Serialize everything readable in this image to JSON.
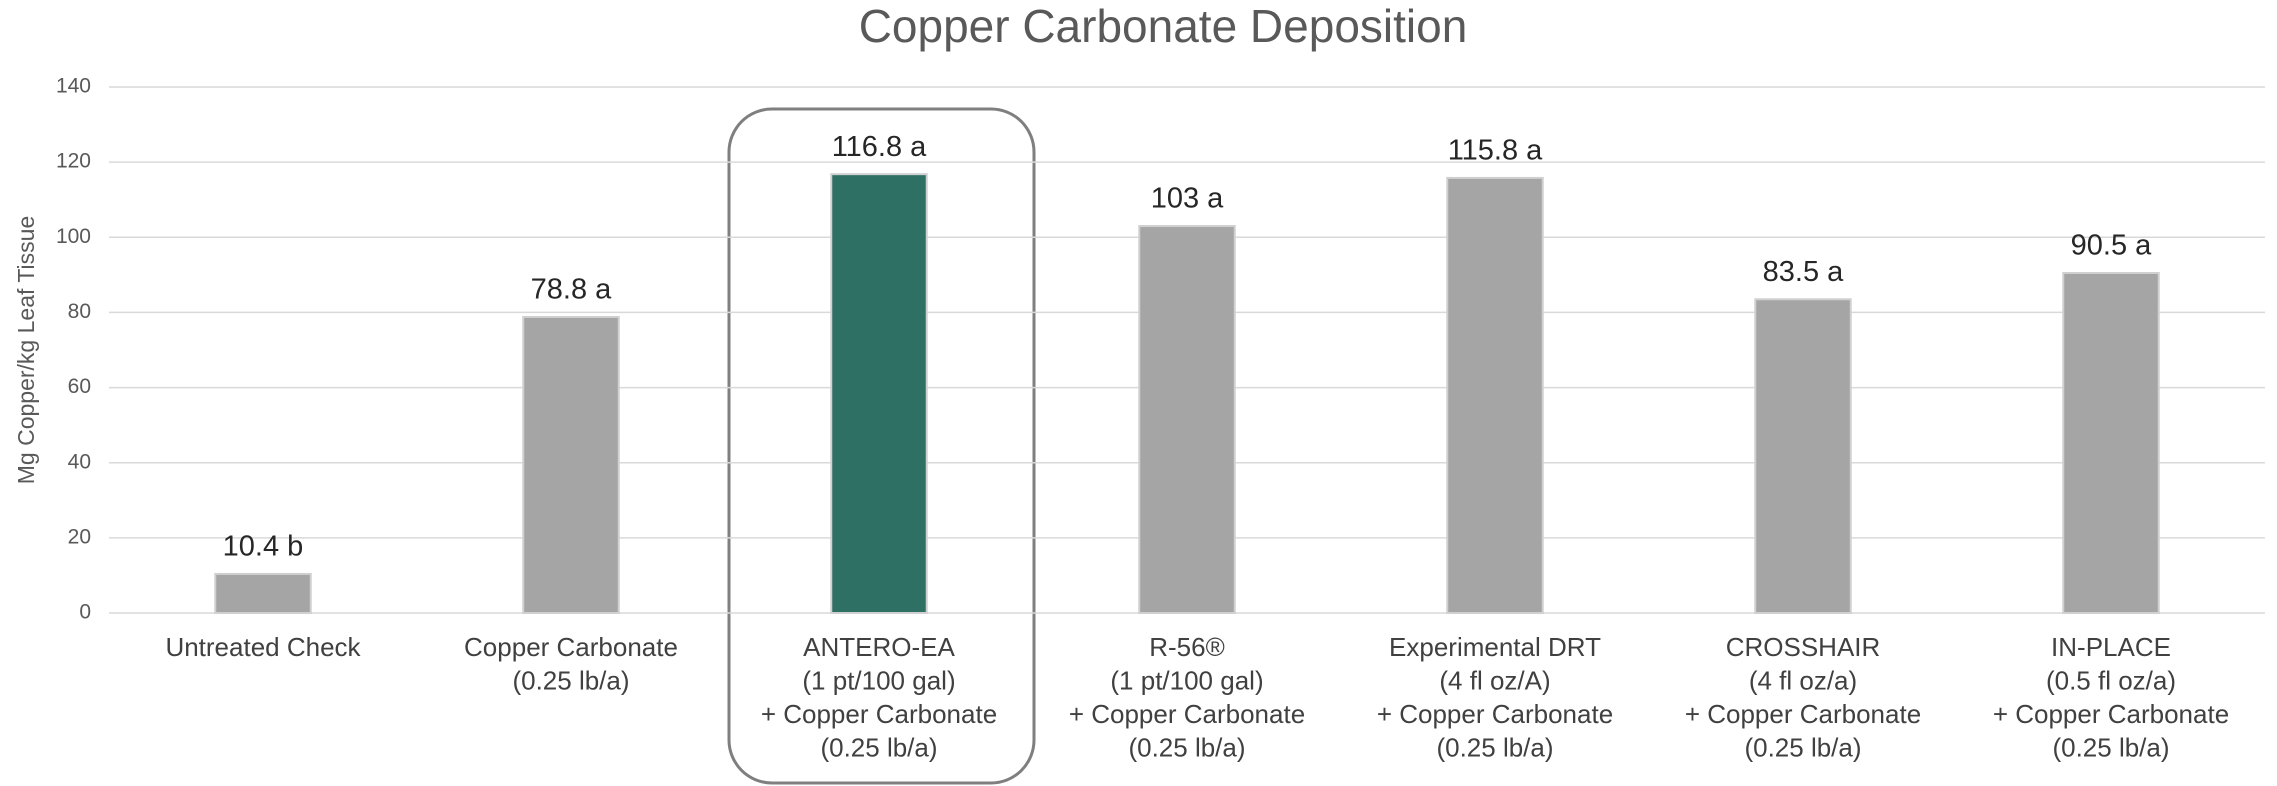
{
  "chart_data": {
    "type": "bar",
    "title": "Copper Carbonate Deposition",
    "y_label": "Mg Copper/kg Leaf Tissue",
    "categories": [
      [
        "Untreated Check"
      ],
      [
        "Copper Carbonate",
        "(0.25 lb/a)"
      ],
      [
        "ANTERO-EA",
        "(1 pt/100 gal)",
        "+ Copper Carbonate",
        "(0.25 lb/a)"
      ],
      [
        "R-56®",
        "(1 pt/100 gal)",
        "+ Copper Carbonate",
        "(0.25 lb/a)"
      ],
      [
        "Experimental DRT",
        "(4 fl oz/A)",
        "+ Copper Carbonate",
        "(0.25 lb/a)"
      ],
      [
        "CROSSHAIR",
        "(4 fl oz/a)",
        "+ Copper Carbonate",
        "(0.25 lb/a)"
      ],
      [
        "IN-PLACE",
        "(0.5 fl oz/a)",
        "+ Copper Carbonate",
        "(0.25 lb/a)"
      ]
    ],
    "values": [
      10.4,
      78.8,
      116.8,
      103,
      115.8,
      83.5,
      90.5
    ],
    "value_labels": [
      "10.4 b",
      "78.8 a",
      "116.8 a",
      "103 a",
      "115.8 a",
      "83.5 a",
      "90.5 a"
    ],
    "colors": [
      "#a5a5a5",
      "#a5a5a5",
      "#2e7063",
      "#a5a5a5",
      "#a5a5a5",
      "#a5a5a5",
      "#a5a5a5"
    ],
    "ylim": [
      0,
      140
    ],
    "yticks": [
      0,
      20,
      40,
      60,
      80,
      100,
      120,
      140
    ],
    "grid": true
  }
}
